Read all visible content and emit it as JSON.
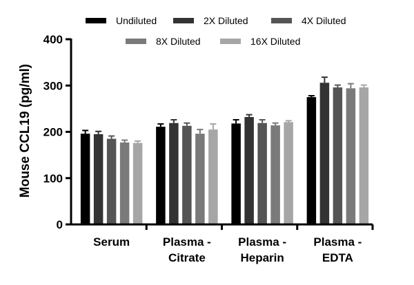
{
  "chart_data": {
    "type": "bar",
    "title": "",
    "xlabel": "",
    "ylabel": "Mouse CCL19 (pg/ml)",
    "ylim": [
      0,
      400
    ],
    "yticks": [
      "0",
      "100",
      "200",
      "300",
      "400"
    ],
    "grid": false,
    "legend_position": "top",
    "categories": [
      {
        "line1": "Serum",
        "line2": ""
      },
      {
        "line1": "Plasma -",
        "line2": "Citrate"
      },
      {
        "line1": "Plasma -",
        "line2": "Heparin"
      },
      {
        "line1": "Plasma -",
        "line2": "EDTA"
      }
    ],
    "series": [
      {
        "name": "Undiluted",
        "color": "#000000",
        "values": [
          196,
          211,
          218,
          275
        ],
        "errors": [
          7,
          6,
          8,
          3
        ]
      },
      {
        "name": "2X Diluted",
        "color": "#333333",
        "values": [
          195,
          219,
          232,
          306
        ],
        "errors": [
          6,
          7,
          5,
          12
        ]
      },
      {
        "name": "4X Diluted",
        "color": "#555555",
        "values": [
          185,
          213,
          219,
          296
        ],
        "errors": [
          6,
          6,
          7,
          5
        ]
      },
      {
        "name": "8X Diluted",
        "color": "#7a7a7a",
        "values": [
          177,
          196,
          214,
          294
        ],
        "errors": [
          5,
          9,
          5,
          10
        ]
      },
      {
        "name": "16X Diluted",
        "color": "#a6a6a6",
        "values": [
          176,
          205,
          221,
          296
        ],
        "errors": [
          4,
          12,
          3,
          5
        ]
      }
    ]
  }
}
